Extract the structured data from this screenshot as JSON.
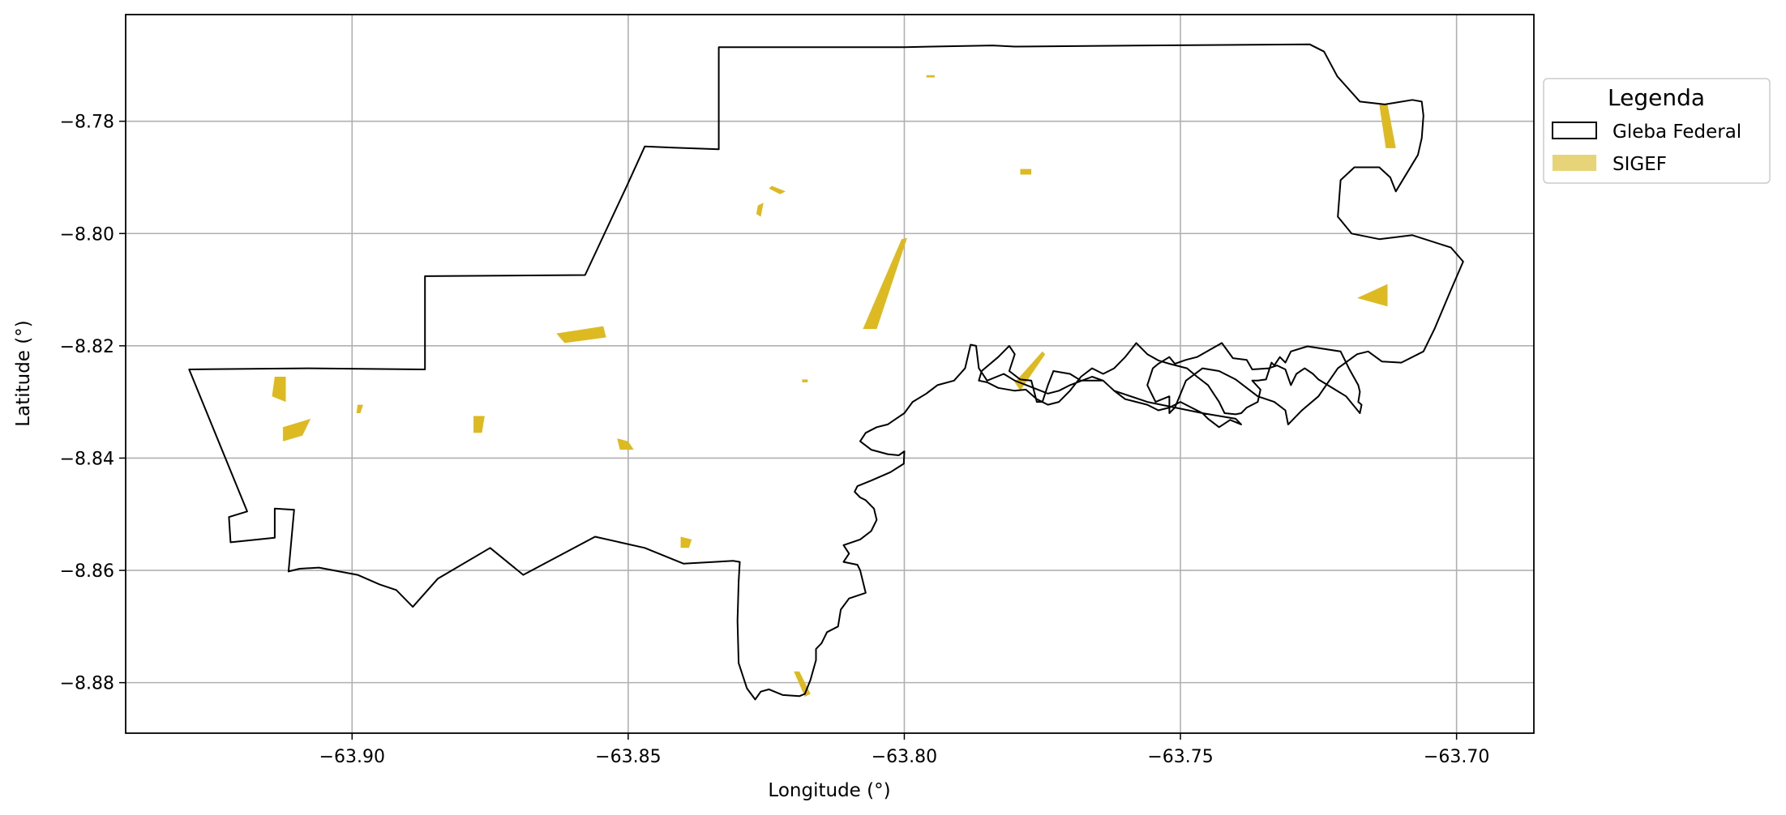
{
  "chart_data": {
    "type": "map",
    "xlabel": "Longitude (°)",
    "ylabel": "Latitude (°)",
    "xlim": [
      -63.941,
      -63.686
    ],
    "ylim": [
      -8.889,
      -8.761
    ],
    "x_ticks": [
      -63.9,
      -63.85,
      -63.8,
      -63.75,
      -63.7
    ],
    "x_tick_labels": [
      "−63.90",
      "−63.85",
      "−63.80",
      "−63.75",
      "−63.70"
    ],
    "y_ticks": [
      -8.78,
      -8.8,
      -8.82,
      -8.84,
      -8.86,
      -8.88
    ],
    "y_tick_labels": [
      "−8.78",
      "−8.80",
      "−8.82",
      "−8.84",
      "−8.86",
      "−8.88"
    ],
    "grid": true,
    "legend": {
      "title": "Legenda",
      "placement": "upper right outside",
      "entries": [
        {
          "label": "Gleba Federal",
          "style": "outline",
          "color": "#000000"
        },
        {
          "label": "SIGEF",
          "style": "fill",
          "color": "#e8d478"
        }
      ]
    },
    "colors": {
      "boundary": "#000000",
      "parcel": "#ddba22",
      "grid": "#b0b0b0"
    },
    "boundary": [
      [
        -63.9295,
        -8.8242
      ],
      [
        -63.908,
        -8.824
      ],
      [
        -63.8868,
        -8.8242
      ],
      [
        -63.8868,
        -8.8076
      ],
      [
        -63.8578,
        -8.8074
      ],
      [
        -63.8501,
        -8.7912
      ],
      [
        -63.847,
        -8.7845
      ],
      [
        -63.8418,
        -8.7847
      ],
      [
        -63.8336,
        -8.785
      ],
      [
        -63.8336,
        -8.7668
      ],
      [
        -63.8,
        -8.7668
      ],
      [
        -63.784,
        -8.7665
      ],
      [
        -63.78,
        -8.7667
      ],
      [
        -63.756,
        -8.7665
      ],
      [
        -63.7266,
        -8.7663
      ],
      [
        -63.724,
        -8.7676
      ],
      [
        -63.7216,
        -8.772
      ],
      [
        -63.7175,
        -8.7765
      ],
      [
        -63.713,
        -8.777
      ],
      [
        -63.708,
        -8.7762
      ],
      [
        -63.7063,
        -8.7765
      ],
      [
        -63.706,
        -8.779
      ],
      [
        -63.7063,
        -8.783
      ],
      [
        -63.707,
        -8.786
      ],
      [
        -63.711,
        -8.7925
      ],
      [
        -63.712,
        -8.79
      ],
      [
        -63.714,
        -8.7882
      ],
      [
        -63.7185,
        -8.7882
      ],
      [
        -63.721,
        -8.7905
      ],
      [
        -63.7215,
        -8.797
      ],
      [
        -63.719,
        -8.8
      ],
      [
        -63.714,
        -8.801
      ],
      [
        -63.708,
        -8.8003
      ],
      [
        -63.701,
        -8.8025
      ],
      [
        -63.6988,
        -8.805
      ],
      [
        -63.701,
        -8.81
      ],
      [
        -63.704,
        -8.817
      ],
      [
        -63.706,
        -8.821
      ],
      [
        -63.71,
        -8.823
      ],
      [
        -63.7135,
        -8.8228
      ],
      [
        -63.716,
        -8.821
      ],
      [
        -63.718,
        -8.8215
      ],
      [
        -63.7215,
        -8.824
      ],
      [
        -63.725,
        -8.829
      ],
      [
        -63.728,
        -8.8315
      ],
      [
        -63.7295,
        -8.833
      ],
      [
        -63.7305,
        -8.834
      ],
      [
        -63.731,
        -8.8315
      ],
      [
        -63.733,
        -8.83
      ],
      [
        -63.736,
        -8.829
      ],
      [
        -63.74,
        -8.826
      ],
      [
        -63.743,
        -8.8245
      ],
      [
        -63.746,
        -8.824
      ],
      [
        -63.749,
        -8.8262
      ],
      [
        -63.751,
        -8.831
      ],
      [
        -63.752,
        -8.832
      ],
      [
        -63.752,
        -8.829
      ],
      [
        -63.7545,
        -8.83
      ],
      [
        -63.756,
        -8.827
      ],
      [
        -63.755,
        -8.824
      ],
      [
        -63.754,
        -8.8232
      ],
      [
        -63.752,
        -8.822
      ],
      [
        -63.751,
        -8.8232
      ],
      [
        -63.749,
        -8.8225
      ],
      [
        -63.747,
        -8.822
      ],
      [
        -63.7425,
        -8.8195
      ],
      [
        -63.7405,
        -8.8222
      ],
      [
        -63.738,
        -8.8225
      ],
      [
        -63.737,
        -8.8242
      ],
      [
        -63.734,
        -8.824
      ],
      [
        -63.7325,
        -8.8235
      ],
      [
        -63.731,
        -8.8242
      ],
      [
        -63.73,
        -8.827
      ],
      [
        -63.729,
        -8.825
      ],
      [
        -63.7275,
        -8.824
      ],
      [
        -63.726,
        -8.825
      ],
      [
        -63.725,
        -8.826
      ],
      [
        -63.72,
        -8.829
      ],
      [
        -63.7175,
        -8.832
      ],
      [
        -63.7172,
        -8.8305
      ],
      [
        -63.7178,
        -8.83
      ],
      [
        -63.7175,
        -8.8282
      ],
      [
        -63.7178,
        -8.827
      ],
      [
        -63.7195,
        -8.824
      ],
      [
        -63.72,
        -8.823
      ],
      [
        -63.721,
        -8.821
      ],
      [
        -63.727,
        -8.8201
      ],
      [
        -63.73,
        -8.821
      ],
      [
        -63.731,
        -8.823
      ],
      [
        -63.732,
        -8.822
      ],
      [
        -63.733,
        -8.8235
      ],
      [
        -63.7335,
        -8.823
      ],
      [
        -63.7345,
        -8.826
      ],
      [
        -63.736,
        -8.8262
      ],
      [
        -63.737,
        -8.8262
      ],
      [
        -63.7355,
        -8.8278
      ],
      [
        -63.736,
        -8.83
      ],
      [
        -63.738,
        -8.831
      ],
      [
        -63.739,
        -8.832
      ],
      [
        -63.74,
        -8.8322
      ],
      [
        -63.742,
        -8.832
      ],
      [
        -63.743,
        -8.83
      ],
      [
        -63.744,
        -8.8285
      ],
      [
        -63.745,
        -8.827
      ],
      [
        -63.747,
        -8.8255
      ],
      [
        -63.7488,
        -8.824
      ],
      [
        -63.752,
        -8.8232
      ],
      [
        -63.754,
        -8.8226
      ],
      [
        -63.756,
        -8.8215
      ],
      [
        -63.758,
        -8.8195
      ],
      [
        -63.76,
        -8.822
      ],
      [
        -63.762,
        -8.824
      ],
      [
        -63.764,
        -8.825
      ],
      [
        -63.766,
        -8.824
      ],
      [
        -63.768,
        -8.8255
      ],
      [
        -63.77,
        -8.828
      ],
      [
        -63.772,
        -8.83
      ],
      [
        -63.774,
        -8.8305
      ],
      [
        -63.776,
        -8.8295
      ],
      [
        -63.778,
        -8.8278
      ],
      [
        -63.78,
        -8.828
      ],
      [
        -63.783,
        -8.8275
      ],
      [
        -63.785,
        -8.8265
      ],
      [
        -63.7865,
        -8.8262
      ],
      [
        -63.786,
        -8.8245
      ],
      [
        -63.783,
        -8.822
      ],
      [
        -63.781,
        -8.82
      ],
      [
        -63.78,
        -8.8215
      ],
      [
        -63.781,
        -8.8245
      ],
      [
        -63.779,
        -8.826
      ],
      [
        -63.777,
        -8.8262
      ],
      [
        -63.776,
        -8.83
      ],
      [
        -63.775,
        -8.83
      ],
      [
        -63.774,
        -8.827
      ],
      [
        -63.773,
        -8.8245
      ],
      [
        -63.77,
        -8.825
      ],
      [
        -63.768,
        -8.8262
      ],
      [
        -63.766,
        -8.8262
      ],
      [
        -63.764,
        -8.8262
      ],
      [
        -63.762,
        -8.828
      ],
      [
        -63.76,
        -8.8295
      ],
      [
        -63.758,
        -8.83
      ],
      [
        -63.756,
        -8.8305
      ],
      [
        -63.754,
        -8.8315
      ],
      [
        -63.752,
        -8.831
      ],
      [
        -63.75,
        -8.83
      ],
      [
        -63.748,
        -8.831
      ],
      [
        -63.746,
        -8.832
      ],
      [
        -63.745,
        -8.833
      ],
      [
        -63.743,
        -8.8345
      ],
      [
        -63.741,
        -8.8332
      ],
      [
        -63.739,
        -8.834
      ]
    ],
    "boundary_west_south": [
      [
        -63.8,
        -8.8388
      ],
      [
        -63.8001,
        -8.841
      ],
      [
        -63.8025,
        -8.8425
      ],
      [
        -63.806,
        -8.844
      ],
      [
        -63.8085,
        -8.845
      ],
      [
        -63.809,
        -8.846
      ],
      [
        -63.808,
        -8.847
      ],
      [
        -63.807,
        -8.8475
      ],
      [
        -63.8055,
        -8.849
      ],
      [
        -63.805,
        -8.851
      ],
      [
        -63.806,
        -8.853
      ],
      [
        -63.808,
        -8.8545
      ],
      [
        -63.811,
        -8.8555
      ],
      [
        -63.81,
        -8.857
      ],
      [
        -63.811,
        -8.8585
      ],
      [
        -63.8085,
        -8.859
      ],
      [
        -63.808,
        -8.86
      ],
      [
        -63.807,
        -8.864
      ],
      [
        -63.81,
        -8.865
      ],
      [
        -63.8115,
        -8.867
      ],
      [
        -63.812,
        -8.87
      ],
      [
        -63.814,
        -8.871
      ],
      [
        -63.815,
        -8.873
      ],
      [
        -63.816,
        -8.874
      ],
      [
        -63.816,
        -8.876
      ],
      [
        -63.817,
        -8.8795
      ],
      [
        -63.818,
        -8.882
      ],
      [
        -63.819,
        -8.8824
      ],
      [
        -63.822,
        -8.8822
      ],
      [
        -63.8245,
        -8.8812
      ],
      [
        -63.826,
        -8.8816
      ],
      [
        -63.827,
        -8.883
      ],
      [
        -63.8285,
        -8.881
      ],
      [
        -63.83,
        -8.8765
      ],
      [
        -63.8302,
        -8.869
      ],
      [
        -63.83,
        -8.862
      ],
      [
        -63.8298,
        -8.8585
      ],
      [
        -63.831,
        -8.8583
      ],
      [
        -63.84,
        -8.8588
      ],
      [
        -63.847,
        -8.856
      ],
      [
        -63.856,
        -8.854
      ],
      [
        -63.869,
        -8.8608
      ],
      [
        -63.875,
        -8.856
      ],
      [
        -63.8845,
        -8.8615
      ],
      [
        -63.889,
        -8.8665
      ],
      [
        -63.892,
        -8.8635
      ],
      [
        -63.895,
        -8.8625
      ],
      [
        -63.899,
        -8.8608
      ],
      [
        -63.906,
        -8.8595
      ],
      [
        -63.9095,
        -8.8597
      ],
      [
        -63.9115,
        -8.8602
      ],
      [
        -63.9105,
        -8.8492
      ],
      [
        -63.914,
        -8.849
      ],
      [
        -63.914,
        -8.8542
      ],
      [
        -63.922,
        -8.855
      ],
      [
        -63.9223,
        -8.8505
      ],
      [
        -63.919,
        -8.8495
      ],
      [
        -63.9295,
        -8.8242
      ]
    ],
    "boundary_river_upper": [
      [
        -63.739,
        -8.834
      ],
      [
        -63.74,
        -8.833
      ],
      [
        -63.746,
        -8.832
      ],
      [
        -63.756,
        -8.83
      ],
      [
        -63.762,
        -8.828
      ],
      [
        -63.764,
        -8.8262
      ],
      [
        -63.766,
        -8.8255
      ],
      [
        -63.77,
        -8.827
      ],
      [
        -63.772,
        -8.828
      ],
      [
        -63.774,
        -8.8285
      ],
      [
        -63.78,
        -8.8262
      ],
      [
        -63.782,
        -8.825
      ],
      [
        -63.785,
        -8.8262
      ],
      [
        -63.7865,
        -8.824
      ],
      [
        -63.787,
        -8.82
      ],
      [
        -63.788,
        -8.8198
      ],
      [
        -63.789,
        -8.824
      ],
      [
        -63.791,
        -8.8262
      ],
      [
        -63.794,
        -8.827
      ],
      [
        -63.796,
        -8.8285
      ],
      [
        -63.7985,
        -8.83
      ],
      [
        -63.8,
        -8.832
      ],
      [
        -63.8015,
        -8.833
      ],
      [
        -63.803,
        -8.834
      ],
      [
        -63.805,
        -8.8345
      ],
      [
        -63.807,
        -8.8355
      ],
      [
        -63.808,
        -8.837
      ],
      [
        -63.806,
        -8.8385
      ],
      [
        -63.803,
        -8.8393
      ],
      [
        -63.801,
        -8.8395
      ],
      [
        -63.8,
        -8.8388
      ]
    ],
    "parcels": [
      [
        [
          -63.714,
          -8.777
        ],
        [
          -63.7125,
          -8.777
        ],
        [
          -63.711,
          -8.7848
        ],
        [
          -63.7128,
          -8.7848
        ]
      ],
      [
        [
          -63.718,
          -8.8115
        ],
        [
          -63.7125,
          -8.809
        ],
        [
          -63.7125,
          -8.813
        ]
      ],
      [
        [
          -63.8005,
          -8.801
        ],
        [
          -63.7995,
          -8.8008
        ],
        [
          -63.805,
          -8.817
        ],
        [
          -63.8075,
          -8.817
        ],
        [
          -63.804,
          -8.809
        ]
      ],
      [
        [
          -63.775,
          -8.821
        ],
        [
          -63.7745,
          -8.8215
        ],
        [
          -63.779,
          -8.828
        ],
        [
          -63.78,
          -8.8265
        ]
      ],
      [
        [
          -63.779,
          -8.7885
        ],
        [
          -63.777,
          -8.7885
        ],
        [
          -63.777,
          -8.7895
        ],
        [
          -63.779,
          -8.7895
        ]
      ],
      [
        [
          -63.796,
          -8.7718
        ],
        [
          -63.7945,
          -8.7718
        ],
        [
          -63.7945,
          -8.7722
        ],
        [
          -63.796,
          -8.7722
        ]
      ],
      [
        [
          -63.8245,
          -8.792
        ],
        [
          -63.8225,
          -8.793
        ],
        [
          -63.8215,
          -8.7925
        ],
        [
          -63.824,
          -8.7915
        ]
      ],
      [
        [
          -63.8265,
          -8.795
        ],
        [
          -63.8255,
          -8.7945
        ],
        [
          -63.826,
          -8.797
        ],
        [
          -63.8268,
          -8.7965
        ]
      ],
      [
        [
          -63.863,
          -8.8178
        ],
        [
          -63.8545,
          -8.8165
        ],
        [
          -63.854,
          -8.8185
        ],
        [
          -63.8615,
          -8.8195
        ]
      ],
      [
        [
          -63.914,
          -8.8255
        ],
        [
          -63.912,
          -8.8255
        ],
        [
          -63.912,
          -8.83
        ],
        [
          -63.9145,
          -8.829
        ]
      ],
      [
        [
          -63.9125,
          -8.8345
        ],
        [
          -63.9075,
          -8.833
        ],
        [
          -63.909,
          -8.836
        ],
        [
          -63.9125,
          -8.837
        ]
      ],
      [
        [
          -63.899,
          -8.8305
        ],
        [
          -63.898,
          -8.8305
        ],
        [
          -63.8985,
          -8.832
        ],
        [
          -63.8992,
          -8.832
        ]
      ],
      [
        [
          -63.878,
          -8.8325
        ],
        [
          -63.876,
          -8.8325
        ],
        [
          -63.8765,
          -8.8355
        ],
        [
          -63.878,
          -8.8355
        ]
      ],
      [
        [
          -63.852,
          -8.8365
        ],
        [
          -63.85,
          -8.837
        ],
        [
          -63.849,
          -8.8385
        ],
        [
          -63.8515,
          -8.8385
        ]
      ],
      [
        [
          -63.8405,
          -8.854
        ],
        [
          -63.8385,
          -8.8545
        ],
        [
          -63.839,
          -8.856
        ],
        [
          -63.8405,
          -8.856
        ]
      ],
      [
        [
          -63.8185,
          -8.826
        ],
        [
          -63.8175,
          -8.826
        ],
        [
          -63.8175,
          -8.8265
        ],
        [
          -63.8185,
          -8.8265
        ]
      ],
      [
        [
          -63.82,
          -8.878
        ],
        [
          -63.819,
          -8.878
        ],
        [
          -63.817,
          -8.882
        ],
        [
          -63.818,
          -8.8825
        ]
      ]
    ]
  }
}
